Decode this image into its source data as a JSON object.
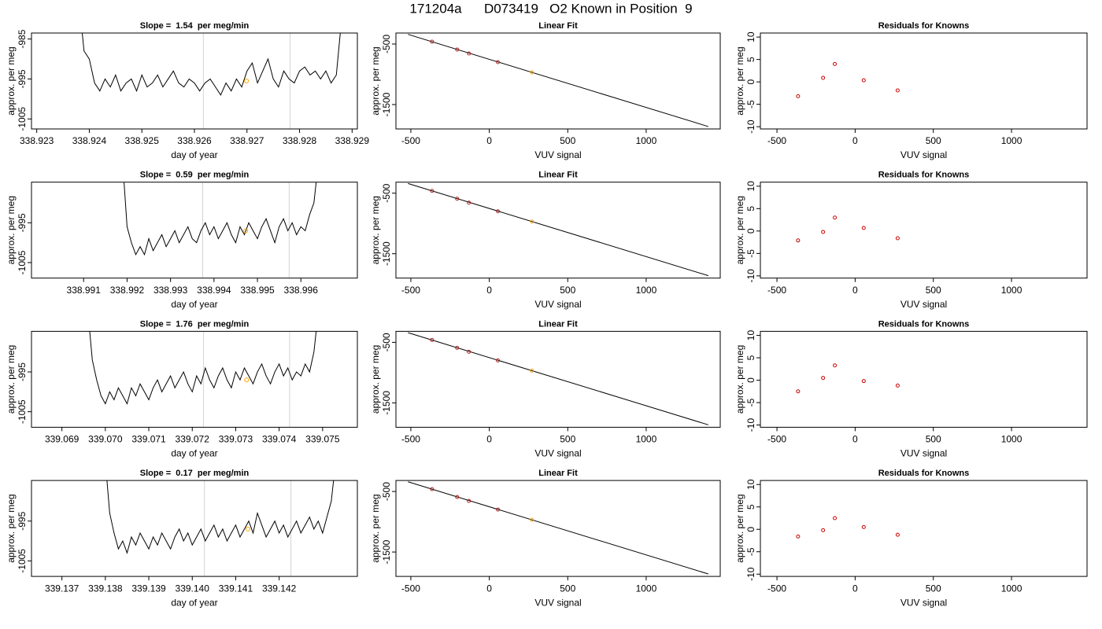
{
  "title": "171204a      D073419   O2 Known in Position  9",
  "chart_data": [
    {
      "type": "line",
      "title": "Slope =  1.54  per meg/min",
      "xlabel": "day of year",
      "ylabel": "approx. per meg",
      "x": [
        338.9238,
        338.9239,
        338.924,
        338.9241,
        338.9242,
        338.9243,
        338.9244,
        338.9245,
        338.9246,
        338.9247,
        338.9248,
        338.9249,
        338.925,
        338.9251,
        338.9252,
        338.9253,
        338.9254,
        338.9255,
        338.9256,
        338.9257,
        338.9258,
        338.9259,
        338.926,
        338.9261,
        338.9262,
        338.9263,
        338.9264,
        338.9265,
        338.9266,
        338.9267,
        338.9268,
        338.9269,
        338.927,
        338.9271,
        338.9272,
        338.9273,
        338.9274,
        338.9275,
        338.9276,
        338.9277,
        338.9278,
        338.9279,
        338.928,
        338.9281,
        338.9282,
        338.9283,
        338.9284,
        338.9285,
        338.9286,
        338.9287,
        338.9288
      ],
      "values": [
        -975,
        -988,
        -990,
        -996,
        -998,
        -995,
        -997,
        -994,
        -998,
        -996,
        -995,
        -998,
        -994,
        -997,
        -996,
        -994,
        -997,
        -995,
        -993,
        -996,
        -997,
        -995,
        -996,
        -998,
        -996,
        -995,
        -997,
        -999,
        -996,
        -998,
        -995,
        -997,
        -993,
        -991,
        -996,
        -993,
        -990,
        -995,
        -997,
        -993,
        -995,
        -996,
        -993,
        -992,
        -994,
        -993,
        -995,
        -993,
        -996,
        -994,
        -980
      ],
      "color": "#000000",
      "vlines": {
        "x": [
          338.92617,
          338.92782
        ],
        "color": "#d3d3d3"
      },
      "highlight": {
        "x": 338.92699,
        "y": -995.5,
        "color": "#ffa500"
      },
      "xlim": [
        338.9229,
        338.9291
      ],
      "xticks": [
        338.923,
        338.924,
        338.925,
        338.926,
        338.927,
        338.928,
        338.929
      ],
      "ylim": [
        -1007.5,
        -983.5
      ],
      "yticks": [
        -985,
        -995,
        -1005
      ]
    },
    {
      "type": "scatter",
      "title": "Linear Fit",
      "xlabel": "VUV signal",
      "ylabel": "approx. per meg",
      "x": [
        -365,
        -205,
        -130,
        55,
        272
      ],
      "y": [
        -461,
        -591,
        -656,
        -799,
        -968
      ],
      "colors": [
        "#b22222",
        "#b22222",
        "#b22222",
        "#b22222",
        "#ffa500"
      ],
      "fit_line": {
        "x": [
          -518,
          1396
        ],
        "y": [
          -340,
          -1863
        ],
        "color": "#000000"
      },
      "xlim": [
        -595,
        1472
      ],
      "xticks": [
        -500,
        0,
        500,
        1000
      ],
      "ylim": [
        -1903,
        -318
      ],
      "yticks": [
        -500,
        -1500
      ]
    },
    {
      "type": "scatter",
      "title": "Residuals for Knowns",
      "xlabel": "VUV signal",
      "ylabel": "approx. per meg",
      "x": [
        -365,
        -205,
        -130,
        55,
        272
      ],
      "y": [
        -3.2,
        0.9,
        4.0,
        0.35,
        -1.9
      ],
      "colors": [
        "#cc0000",
        "#cc0000",
        "#cc0000",
        "#cc0000",
        "#cc0000"
      ],
      "xlim": [
        -606,
        1483
      ],
      "xticks": [
        -500,
        0,
        500,
        1000
      ],
      "ylim": [
        -10.5,
        10.9
      ],
      "yticks": [
        -10,
        -5,
        0,
        5,
        10
      ]
    },
    {
      "type": "line",
      "title": "Slope =  0.59  per meg/min",
      "xlabel": "day of year",
      "ylabel": "approx. per meg",
      "x": [
        338.9919,
        338.992,
        338.9921,
        338.9922,
        338.9923,
        338.9924,
        338.9925,
        338.9926,
        338.9927,
        338.9928,
        338.9929,
        338.993,
        338.9931,
        338.9932,
        338.9933,
        338.9934,
        338.9935,
        338.9936,
        338.9937,
        338.9938,
        338.9939,
        338.994,
        338.9941,
        338.9942,
        338.9943,
        338.9944,
        338.9945,
        338.9946,
        338.9947,
        338.9948,
        338.9949,
        338.995,
        338.9951,
        338.9952,
        338.9953,
        338.9954,
        338.9955,
        338.9956,
        338.9957,
        338.9958,
        338.9959,
        338.996,
        338.9961,
        338.9962,
        338.9963,
        338.9964
      ],
      "values": [
        -980,
        -996,
        -1000,
        -1003,
        -1001,
        -1003,
        -999,
        -1002,
        -1000,
        -998,
        -1001,
        -999,
        -997,
        -1000,
        -998,
        -996,
        -999,
        -1000,
        -997,
        -995,
        -998,
        -996,
        -999,
        -997,
        -995,
        -998,
        -1000,
        -996,
        -998,
        -995,
        -997,
        -999,
        -996,
        -994,
        -997,
        -1000,
        -996,
        -994,
        -997,
        -995,
        -998,
        -996,
        -997,
        -993,
        -990,
        -980
      ],
      "color": "#000000",
      "vlines": {
        "x": [
          338.99374,
          338.99573
        ],
        "color": "#d3d3d3"
      },
      "highlight": {
        "x": 338.99473,
        "y": -997,
        "color": "#ffa500"
      },
      "xlim": [
        338.9898,
        338.9973
      ],
      "xticks": [
        338.991,
        338.992,
        338.993,
        338.994,
        338.995,
        338.996
      ],
      "ylim": [
        -1008.9,
        -984.8
      ],
      "yticks": [
        -995,
        -1005
      ]
    },
    {
      "type": "scatter",
      "title": "Linear Fit",
      "xlabel": "VUV signal",
      "ylabel": "approx. per meg",
      "x": [
        -365,
        -205,
        -130,
        55,
        272
      ],
      "y": [
        -461,
        -591,
        -656,
        -799,
        -968
      ],
      "colors": [
        "#b22222",
        "#b22222",
        "#b22222",
        "#b22222",
        "#ffa500"
      ],
      "fit_line": {
        "x": [
          -518,
          1396
        ],
        "y": [
          -340,
          -1863
        ],
        "color": "#000000"
      },
      "xlim": [
        -595,
        1472
      ],
      "xticks": [
        -500,
        0,
        500,
        1000
      ],
      "ylim": [
        -1903,
        -318
      ],
      "yticks": [
        -500,
        -1500
      ]
    },
    {
      "type": "scatter",
      "title": "Residuals for Knowns",
      "xlabel": "VUV signal",
      "ylabel": "approx. per meg",
      "x": [
        -365,
        -205,
        -130,
        55,
        272
      ],
      "y": [
        -2.1,
        -0.2,
        3.0,
        0.7,
        -1.6
      ],
      "colors": [
        "#cc0000",
        "#cc0000",
        "#cc0000",
        "#cc0000",
        "#cc0000"
      ],
      "xlim": [
        -606,
        1483
      ],
      "xticks": [
        -500,
        0,
        500,
        1000
      ],
      "ylim": [
        -10.5,
        10.9
      ],
      "yticks": [
        -10,
        -5,
        0,
        5,
        10
      ]
    },
    {
      "type": "line",
      "title": "Slope =  1.76  per meg/min",
      "xlabel": "day of year",
      "ylabel": "approx. per meg",
      "x": [
        339.0696,
        339.0697,
        339.0698,
        339.0699,
        339.07,
        339.0701,
        339.0702,
        339.0703,
        339.0704,
        339.0705,
        339.0706,
        339.0707,
        339.0708,
        339.0709,
        339.071,
        339.0711,
        339.0712,
        339.0713,
        339.0714,
        339.0715,
        339.0716,
        339.0717,
        339.0718,
        339.0719,
        339.072,
        339.0721,
        339.0722,
        339.0723,
        339.0724,
        339.0725,
        339.0726,
        339.0727,
        339.0728,
        339.0729,
        339.073,
        339.0731,
        339.0732,
        339.0733,
        339.0734,
        339.0735,
        339.0736,
        339.0737,
        339.0738,
        339.0739,
        339.074,
        339.0741,
        339.0742,
        339.0743,
        339.0744,
        339.0745,
        339.0746,
        339.0747,
        339.0748,
        339.0749
      ],
      "values": [
        -980,
        -992,
        -997,
        -1001,
        -1003,
        -1000,
        -1002,
        -999,
        -1001,
        -1003,
        -999,
        -1001,
        -998,
        -1000,
        -1002,
        -999,
        -997,
        -1000,
        -998,
        -996,
        -999,
        -997,
        -995,
        -998,
        -1000,
        -996,
        -998,
        -994,
        -997,
        -999,
        -996,
        -994,
        -997,
        -999,
        -995,
        -997,
        -994,
        -996,
        -998,
        -995,
        -993,
        -996,
        -998,
        -995,
        -993,
        -996,
        -994,
        -997,
        -995,
        -996,
        -993,
        -995,
        -990,
        -980
      ],
      "color": "#000000",
      "vlines": {
        "x": [
          339.07226,
          339.07424
        ],
        "color": "#d3d3d3"
      },
      "highlight": {
        "x": 339.07325,
        "y": -997,
        "color": "#ffa500"
      },
      "xlim": [
        339.0683,
        339.0758
      ],
      "xticks": [
        339.069,
        {
          "value": 339.07,
          "label": "339.070"
        },
        339.071,
        339.072,
        339.073,
        339.074,
        339.075
      ],
      "ylim": [
        -1008.9,
        -984.8
      ],
      "yticks": [
        -995,
        -1005
      ]
    },
    {
      "type": "scatter",
      "title": "Linear Fit",
      "xlabel": "VUV signal",
      "ylabel": "approx. per meg",
      "x": [
        -365,
        -205,
        -130,
        55,
        272
      ],
      "y": [
        -461,
        -591,
        -656,
        -799,
        -968
      ],
      "colors": [
        "#b22222",
        "#b22222",
        "#b22222",
        "#b22222",
        "#ffa500"
      ],
      "fit_line": {
        "x": [
          -518,
          1396
        ],
        "y": [
          -340,
          -1863
        ],
        "color": "#000000"
      },
      "xlim": [
        -595,
        1472
      ],
      "xticks": [
        -500,
        0,
        500,
        1000
      ],
      "ylim": [
        -1903,
        -318
      ],
      "yticks": [
        -500,
        -1500
      ]
    },
    {
      "type": "scatter",
      "title": "Residuals for Knowns",
      "xlabel": "VUV signal",
      "ylabel": "approx. per meg",
      "x": [
        -365,
        -205,
        -130,
        55,
        272
      ],
      "y": [
        -2.5,
        0.5,
        3.3,
        -0.2,
        -1.2
      ],
      "colors": [
        "#cc0000",
        "#cc0000",
        "#cc0000",
        "#cc0000",
        "#cc0000"
      ],
      "xlim": [
        -606,
        1483
      ],
      "xticks": [
        -500,
        0,
        500,
        1000
      ],
      "ylim": [
        -10.5,
        10.9
      ],
      "yticks": [
        -10,
        -5,
        0,
        5,
        10
      ]
    },
    {
      "type": "line",
      "title": "Slope =  0.17  per meg/min",
      "xlabel": "day of year",
      "ylabel": "approx. per meg",
      "x": [
        339.138,
        339.1381,
        339.1382,
        339.1383,
        339.1384,
        339.1385,
        339.1386,
        339.1387,
        339.1388,
        339.1389,
        339.139,
        339.1391,
        339.1392,
        339.1393,
        339.1394,
        339.1395,
        339.1396,
        339.1397,
        339.1398,
        339.1399,
        339.14,
        339.1401,
        339.1402,
        339.1403,
        339.1404,
        339.1405,
        339.1406,
        339.1407,
        339.1408,
        339.1409,
        339.141,
        339.1411,
        339.1412,
        339.1413,
        339.1414,
        339.1415,
        339.1416,
        339.1417,
        339.1418,
        339.1419,
        339.142,
        339.1421,
        339.1422,
        339.1423,
        339.1424,
        339.1425,
        339.1426,
        339.1427,
        339.1428,
        339.1429,
        339.143,
        339.1431,
        339.1432,
        339.1433
      ],
      "values": [
        -980,
        -993,
        -998,
        -1002,
        -1000,
        -1003,
        -999,
        -1001,
        -998,
        -1000,
        -1002,
        -999,
        -1001,
        -998,
        -1000,
        -1002,
        -999,
        -997,
        -1000,
        -998,
        -1001,
        -999,
        -997,
        -1000,
        -998,
        -996,
        -999,
        -997,
        -1000,
        -998,
        -996,
        -999,
        -997,
        -995,
        -998,
        -993,
        -996,
        -999,
        -997,
        -995,
        -998,
        -996,
        -999,
        -997,
        -995,
        -998,
        -996,
        -994,
        -997,
        -995,
        -998,
        -994,
        -990,
        -980
      ],
      "color": "#000000",
      "vlines": {
        "x": [
          339.14028,
          339.14227
        ],
        "color": "#d3d3d3"
      },
      "highlight": {
        "x": 339.14128,
        "y": -997,
        "color": "#ffa500"
      },
      "xlim": [
        339.1363,
        339.1438
      ],
      "xticks": [
        339.137,
        339.138,
        339.139,
        {
          "value": 339.14,
          "label": "339.140"
        },
        339.141,
        339.142
      ],
      "ylim": [
        -1008.9,
        -984.8
      ],
      "yticks": [
        -995,
        -1005
      ]
    },
    {
      "type": "scatter",
      "title": "Linear Fit",
      "xlabel": "VUV signal",
      "ylabel": "approx. per meg",
      "x": [
        -365,
        -205,
        -130,
        55,
        272
      ],
      "y": [
        -461,
        -591,
        -656,
        -799,
        -968
      ],
      "colors": [
        "#b22222",
        "#b22222",
        "#b22222",
        "#b22222",
        "#ffa500"
      ],
      "fit_line": {
        "x": [
          -518,
          1396
        ],
        "y": [
          -340,
          -1863
        ],
        "color": "#000000"
      },
      "xlim": [
        -595,
        1472
      ],
      "xticks": [
        -500,
        0,
        500,
        1000
      ],
      "ylim": [
        -1903,
        -318
      ],
      "yticks": [
        -500,
        -1500
      ]
    },
    {
      "type": "scatter",
      "title": "Residuals for Knowns",
      "xlabel": "VUV signal",
      "ylabel": "approx. per meg",
      "x": [
        -365,
        -205,
        -130,
        55,
        272
      ],
      "y": [
        -1.6,
        -0.2,
        2.5,
        0.5,
        -1.2
      ],
      "colors": [
        "#cc0000",
        "#cc0000",
        "#cc0000",
        "#cc0000",
        "#cc0000"
      ],
      "xlim": [
        -606,
        1483
      ],
      "xticks": [
        -500,
        0,
        500,
        1000
      ],
      "ylim": [
        -10.5,
        10.9
      ],
      "yticks": [
        -10,
        -5,
        0,
        5,
        10
      ]
    }
  ]
}
